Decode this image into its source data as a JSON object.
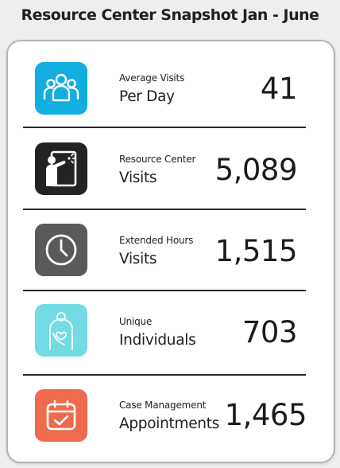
{
  "title": "Resource Center Snapshot Jan - June",
  "colors": {
    "visits_per_day": "#12aee0",
    "resource_center": "#232323",
    "extended_hours": "#5a5a5a",
    "unique_individuals": "#72dbe3",
    "case_management": "#ee6b4e"
  },
  "stats": [
    {
      "label_line1": "Average Visits",
      "label_line2": "Per Day",
      "value": "41",
      "icon": "people-group-icon"
    },
    {
      "label_line1": "Resource Center",
      "label_line2": "Visits",
      "value": "5,089",
      "icon": "person-at-board-icon"
    },
    {
      "label_line1": "Extended Hours",
      "label_line2": "Visits",
      "value": "1,515",
      "icon": "clock-icon"
    },
    {
      "label_line1": "Unique",
      "label_line2": "Individuals",
      "value": "703",
      "icon": "person-heart-icon"
    },
    {
      "label_line1": "Case Management",
      "label_line2": "Appointments",
      "value": "1,465",
      "icon": "calendar-check-icon"
    }
  ]
}
